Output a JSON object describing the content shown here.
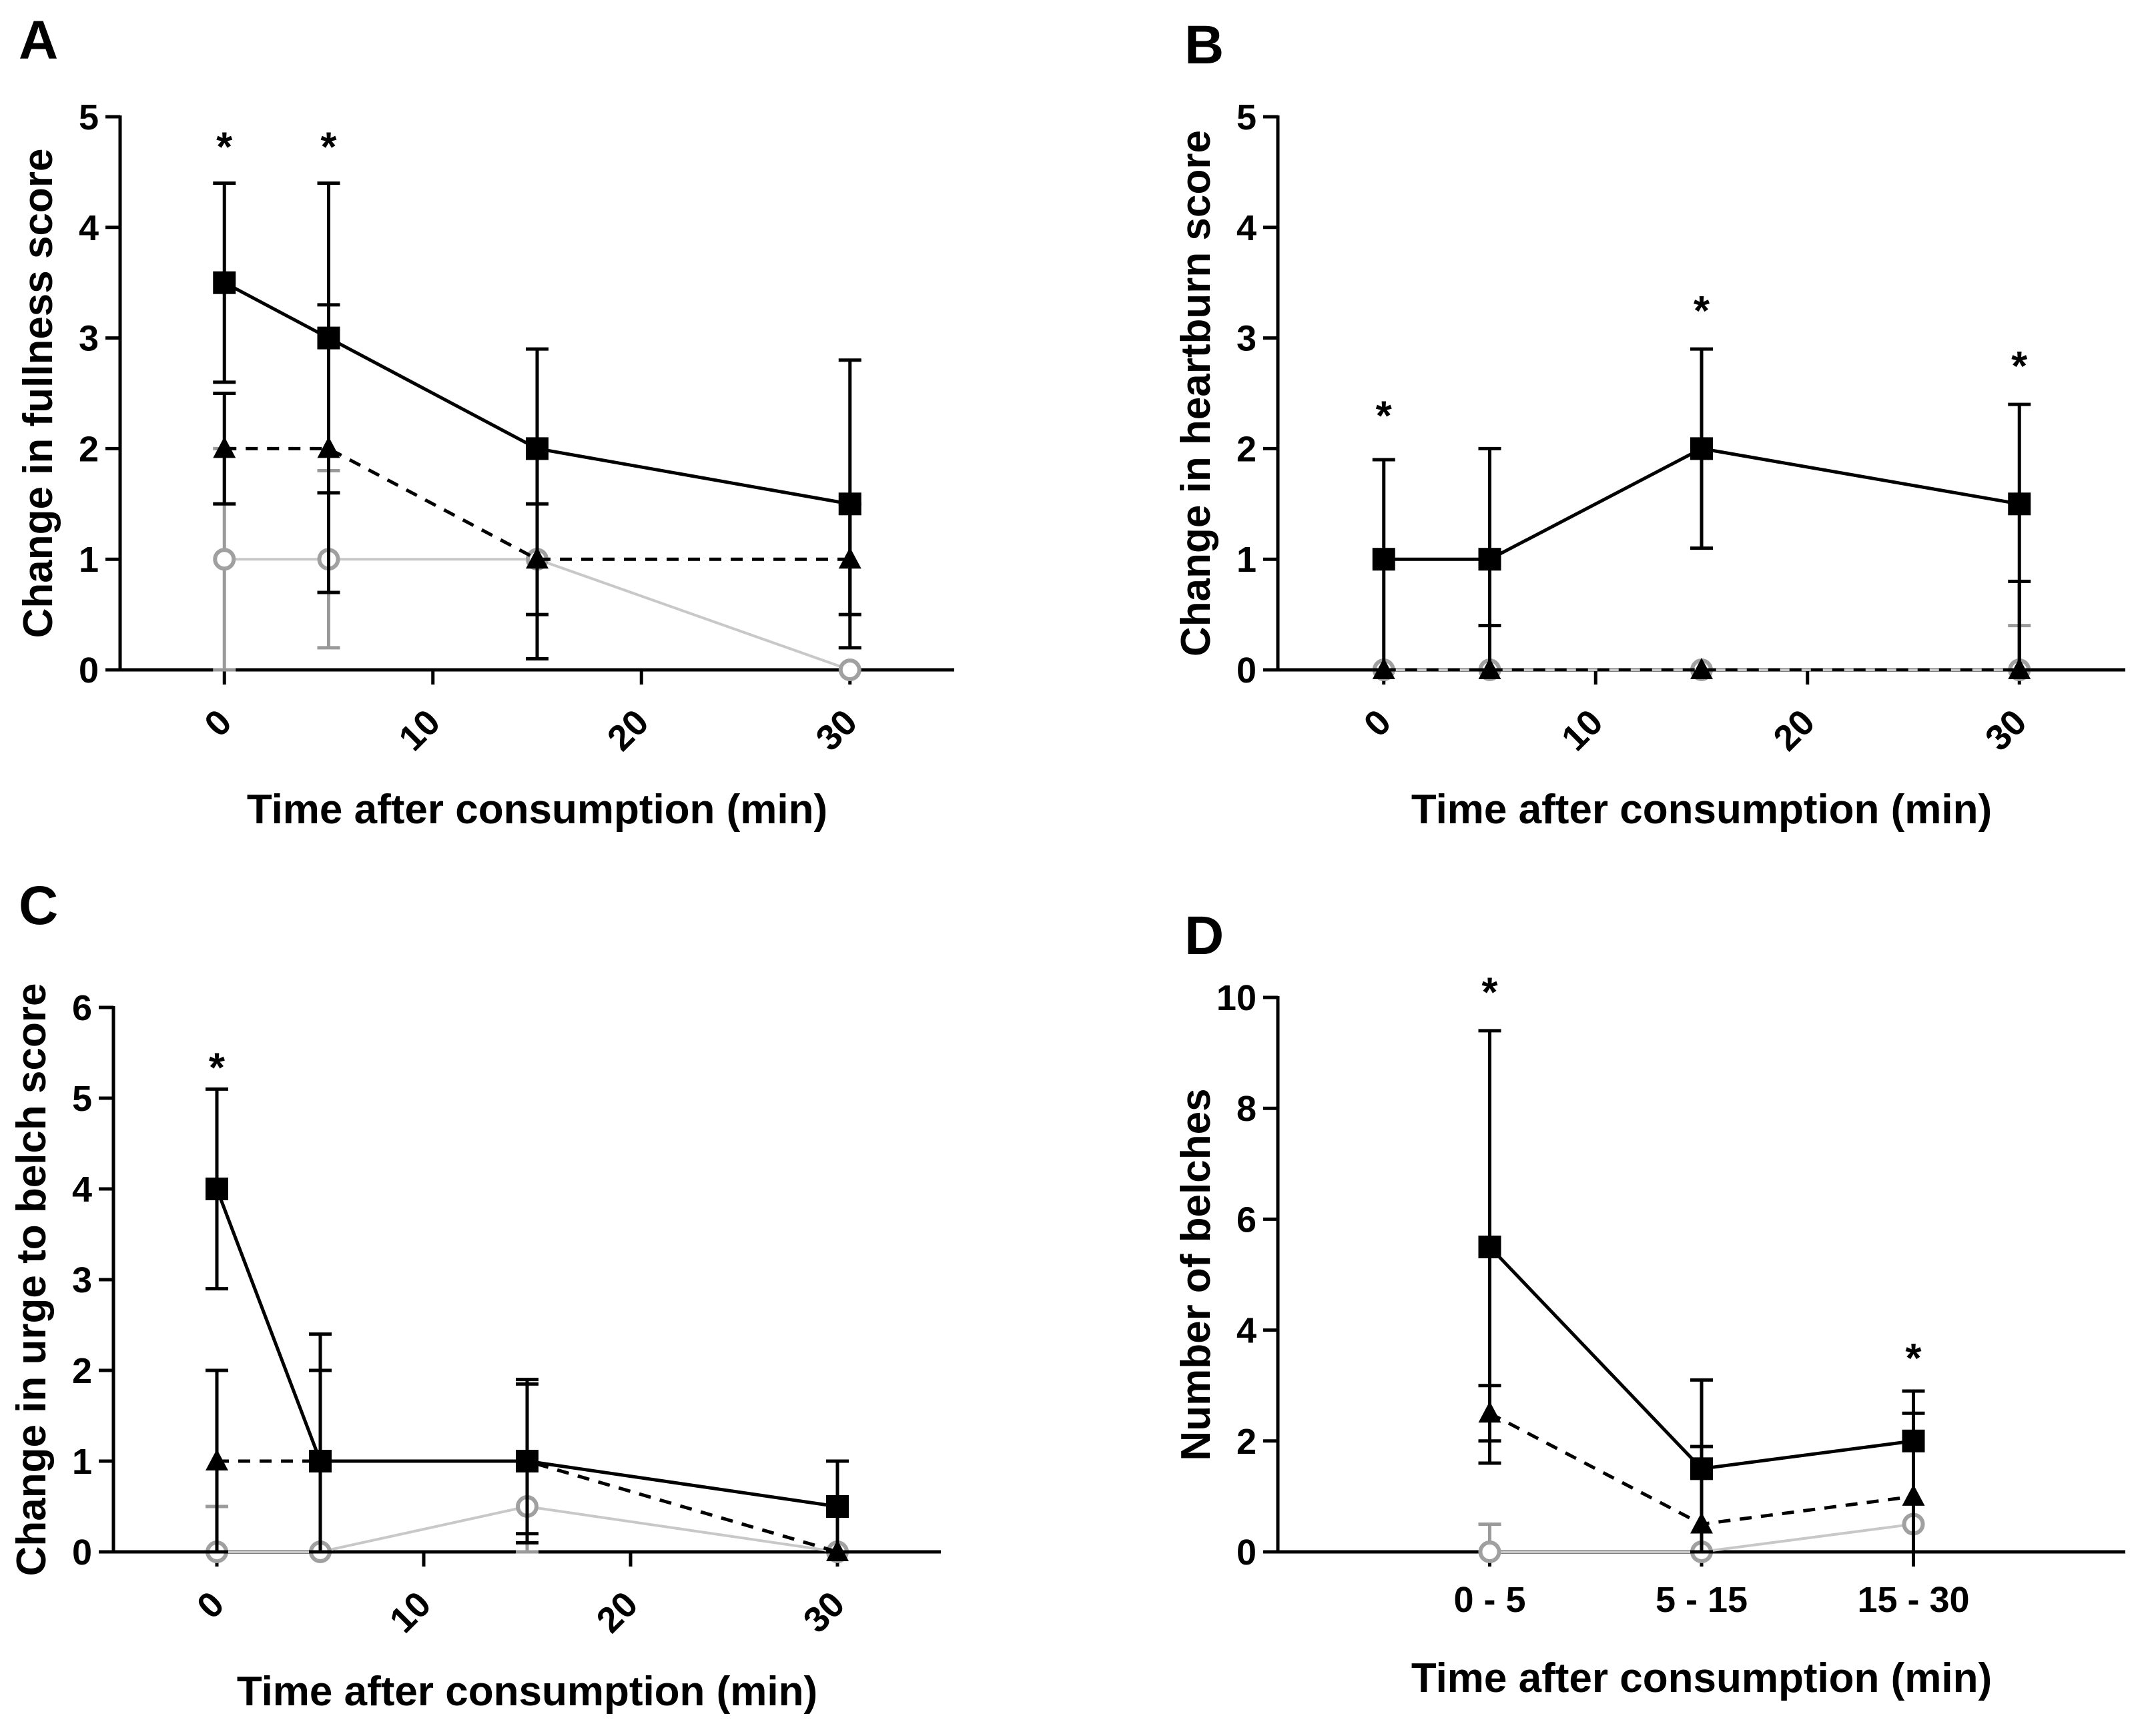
{
  "chart_data": [
    {
      "panel": "A",
      "type": "line",
      "xlabel": "Time after consumption (min)",
      "ylabel": "Change in fullness score",
      "x_axis": "numeric",
      "xlim": [
        -5,
        35
      ],
      "ylim": [
        0,
        5
      ],
      "xticks": [
        "0",
        "10",
        "20",
        "30"
      ],
      "xtick_values": [
        0,
        10,
        20,
        30
      ],
      "yticks": [
        "0",
        "1",
        "2",
        "3",
        "4",
        "5"
      ],
      "ytick_values": [
        0,
        1,
        2,
        3,
        4,
        5
      ],
      "x": [
        0,
        5,
        15,
        30
      ],
      "series": [
        {
          "name": "square-solid",
          "marker": "square",
          "line": "solid",
          "color": "#000000",
          "values": [
            3.5,
            3.0,
            2.0,
            1.5
          ],
          "err_low": [
            2.6,
            1.6,
            0.1,
            0.2
          ],
          "err_high": [
            4.4,
            4.4,
            2.9,
            2.8
          ]
        },
        {
          "name": "triangle-dashed",
          "marker": "triangle",
          "line": "dashed",
          "color": "#000000",
          "values": [
            2.0,
            2.0,
            1.0,
            1.0
          ],
          "err_low": [
            1.5,
            0.7,
            0.5,
            0.5
          ],
          "err_high": [
            2.5,
            3.3,
            1.5,
            1.5
          ]
        },
        {
          "name": "circle-light",
          "marker": "circle",
          "line": "solid",
          "color": "#c8c8c8",
          "values": [
            1.0,
            1.0,
            1.0,
            0.0
          ],
          "err_low": [
            0.0,
            0.2,
            1.0,
            0.0
          ],
          "err_high": [
            2.0,
            1.8,
            1.0,
            0.0
          ]
        }
      ],
      "annotations": [
        {
          "x": 0,
          "y": 4.78,
          "text": "*"
        },
        {
          "x": 5,
          "y": 4.78,
          "text": "*"
        }
      ]
    },
    {
      "panel": "B",
      "type": "line",
      "xlabel": "Time after consumption (min)",
      "ylabel": "Change in heartburn score",
      "x_axis": "numeric",
      "xlim": [
        -5,
        35
      ],
      "ylim": [
        0,
        5
      ],
      "xticks": [
        "0",
        "10",
        "20",
        "30"
      ],
      "xtick_values": [
        0,
        10,
        20,
        30
      ],
      "yticks": [
        "0",
        "1",
        "2",
        "3",
        "4",
        "5"
      ],
      "ytick_values": [
        0,
        1,
        2,
        3,
        4,
        5
      ],
      "x": [
        0,
        5,
        15,
        30
      ],
      "series": [
        {
          "name": "square-solid",
          "marker": "square",
          "line": "solid",
          "color": "#000000",
          "values": [
            1.0,
            1.0,
            2.0,
            1.5
          ],
          "err_low": [
            0.0,
            0.0,
            1.1,
            0.0
          ],
          "err_high": [
            1.9,
            2.0,
            2.9,
            2.4
          ]
        },
        {
          "name": "triangle-dashed",
          "marker": "triangle",
          "line": "dashed",
          "color": "#000000",
          "values": [
            0.0,
            0.0,
            0.0,
            0.0
          ],
          "err_low": [
            0.0,
            0.0,
            0.0,
            0.0
          ],
          "err_high": [
            0.0,
            0.4,
            0.0,
            0.8
          ]
        },
        {
          "name": "circle-light",
          "marker": "circle",
          "line": "solid",
          "color": "#c8c8c8",
          "values": [
            0.0,
            0.0,
            0.0,
            0.0
          ],
          "err_low": [
            0.0,
            0.0,
            0.0,
            0.0
          ],
          "err_high": [
            0.0,
            0.0,
            0.0,
            0.4
          ]
        }
      ],
      "annotations": [
        {
          "x": 0,
          "y": 2.35,
          "text": "*"
        },
        {
          "x": 15,
          "y": 3.3,
          "text": "*"
        },
        {
          "x": 30,
          "y": 2.8,
          "text": "*"
        }
      ]
    },
    {
      "panel": "C",
      "type": "line",
      "xlabel": "Time after consumption (min)",
      "ylabel": "Change in urge to belch score",
      "x_axis": "numeric",
      "xlim": [
        -5,
        35
      ],
      "ylim": [
        0,
        6
      ],
      "xticks": [
        "0",
        "10",
        "20",
        "30"
      ],
      "xtick_values": [
        0,
        10,
        20,
        30
      ],
      "yticks": [
        "0",
        "1",
        "2",
        "3",
        "4",
        "5",
        "6"
      ],
      "ytick_values": [
        0,
        1,
        2,
        3,
        4,
        5,
        6
      ],
      "x": [
        0,
        5,
        15,
        30
      ],
      "series": [
        {
          "name": "square-solid",
          "marker": "square",
          "line": "solid",
          "color": "#000000",
          "values": [
            4.0,
            1.0,
            1.0,
            0.5
          ],
          "err_low": [
            2.9,
            0.0,
            0.2,
            0.0
          ],
          "err_high": [
            5.1,
            2.4,
            1.9,
            1.0
          ]
        },
        {
          "name": "triangle-dashed",
          "marker": "triangle",
          "line": "dashed",
          "color": "#000000",
          "values": [
            1.0,
            1.0,
            1.0,
            0.0
          ],
          "err_low": [
            0.0,
            0.0,
            0.1,
            0.0
          ],
          "err_high": [
            2.0,
            2.0,
            1.85,
            0.0
          ]
        },
        {
          "name": "circle-light",
          "marker": "circle",
          "line": "solid",
          "color": "#c8c8c8",
          "values": [
            0.0,
            0.0,
            0.5,
            0.0
          ],
          "err_low": [
            0.0,
            0.0,
            0.0,
            0.0
          ],
          "err_high": [
            0.5,
            0.0,
            1.1,
            0.0
          ]
        }
      ],
      "annotations": [
        {
          "x": 0,
          "y": 5.4,
          "text": "*"
        }
      ]
    },
    {
      "panel": "D",
      "type": "line",
      "xlabel": "Time after consumption (min)",
      "ylabel": "Number of belches",
      "x_axis": "categorical",
      "categories": [
        "0 - 5",
        "5 - 15",
        "15 - 30"
      ],
      "ylim": [
        0,
        10
      ],
      "yticks": [
        "0",
        "2",
        "4",
        "6",
        "8",
        "10"
      ],
      "ytick_values": [
        0,
        2,
        4,
        6,
        8,
        10
      ],
      "series": [
        {
          "name": "square-solid",
          "marker": "square",
          "line": "solid",
          "color": "#000000",
          "values": [
            5.5,
            1.5,
            2.0
          ],
          "err_low": [
            1.6,
            0.0,
            0.0
          ],
          "err_high": [
            9.4,
            3.1,
            2.9
          ]
        },
        {
          "name": "triangle-dashed",
          "marker": "triangle",
          "line": "dashed",
          "color": "#000000",
          "values": [
            2.5,
            0.5,
            1.0
          ],
          "err_low": [
            2.0,
            0.0,
            0.0
          ],
          "err_high": [
            3.0,
            1.9,
            2.5
          ]
        },
        {
          "name": "circle-light",
          "marker": "circle",
          "line": "solid",
          "color": "#c8c8c8",
          "values": [
            0.0,
            0.0,
            0.5
          ],
          "err_low": [
            0.0,
            0.0,
            0.0
          ],
          "err_high": [
            0.5,
            0.0,
            0.0
          ]
        }
      ],
      "annotations": [
        {
          "x": 0,
          "y": 10.2,
          "text": "*"
        },
        {
          "x": 2,
          "y": 3.6,
          "text": "*"
        }
      ]
    }
  ]
}
